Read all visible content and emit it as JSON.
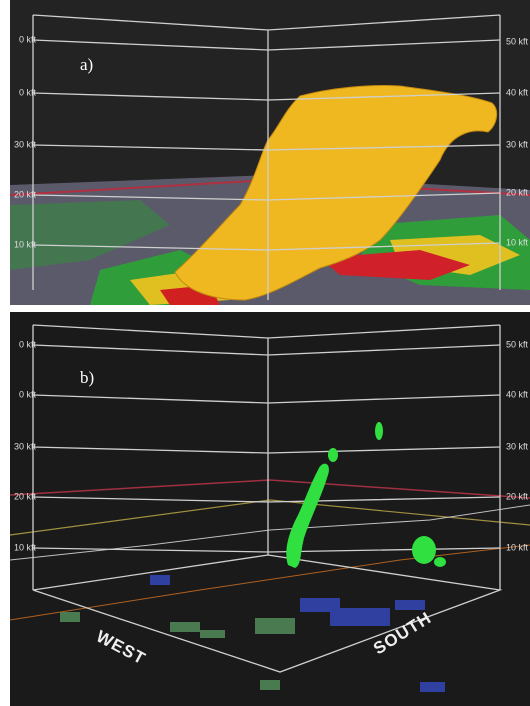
{
  "panels": [
    {
      "label": "a)",
      "left_labels": [
        "0 kft",
        "0 kft",
        "30 kft",
        "20 kft",
        "10 kft"
      ],
      "right_labels": [
        "50 kft",
        "40 kft",
        "30 kft",
        "20 kft",
        "10 kft"
      ]
    },
    {
      "label": "b)",
      "left_labels": [
        "0 kft",
        "0 kft",
        "30 kft",
        "20 kft",
        "10 kft"
      ],
      "right_labels": [
        "50 kft",
        "40 kft",
        "30 kft",
        "20 kft",
        "10 kft"
      ],
      "directions": [
        "WEST",
        "SOUTH"
      ]
    }
  ]
}
